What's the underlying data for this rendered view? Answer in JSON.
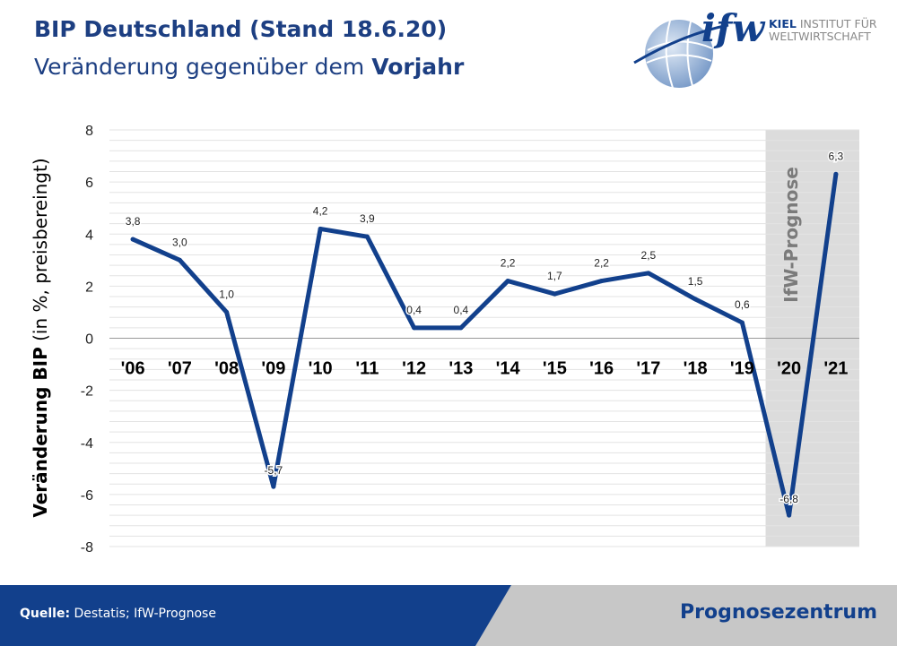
{
  "header": {
    "title": "BIP Deutschland (Stand 18.6.20)",
    "subtitle_prefix": "Veränderung gegenüber dem ",
    "subtitle_bold": "Vorjahr"
  },
  "logo": {
    "wordmark": "ifw",
    "line1_bold": "KIEL",
    "line1_rest": " INSTITUT FÜR",
    "line2": "WELTWIRTSCHAFT"
  },
  "footer": {
    "source_label": "Quelle:",
    "source_text": " Destatis; IfW-Prognose",
    "right_label": "Prognosezentrum"
  },
  "colors": {
    "line": "#12408c",
    "title": "#1d3f82",
    "forecast_band": "#dcdcdc",
    "footer_blue": "#12408c",
    "footer_grey": "#c7c7c7"
  },
  "chart_data": {
    "type": "line",
    "title": "",
    "xlabel": "",
    "ylabel_bold": "Veränderung BIP",
    "ylabel_rest": " (in %, preisbereingt)",
    "ylim": [
      -8,
      8
    ],
    "yticks": [
      -8,
      -6,
      -4,
      -2,
      0,
      2,
      4,
      6,
      8
    ],
    "grid": true,
    "categories": [
      "'06",
      "'07",
      "'08",
      "'09",
      "'10",
      "'11",
      "'12",
      "'13",
      "'14",
      "'15",
      "'16",
      "'17",
      "'18",
      "'19",
      "'20",
      "'21"
    ],
    "values": [
      3.8,
      3.0,
      1.0,
      -5.7,
      4.2,
      3.9,
      0.4,
      0.4,
      2.2,
      1.7,
      2.2,
      2.5,
      1.5,
      0.6,
      -6.8,
      6.3
    ],
    "data_labels": [
      "3,8",
      "3,0",
      "1,0",
      "-5,7",
      "4,2",
      "3,9",
      "0,4",
      "0,4",
      "2,2",
      "1,7",
      "2,2",
      "2,5",
      "1,5",
      "0,6",
      "-6,8",
      "6,3"
    ],
    "forecast_label": "IfW-Prognose",
    "forecast_categories": [
      "'20",
      "'21"
    ]
  }
}
